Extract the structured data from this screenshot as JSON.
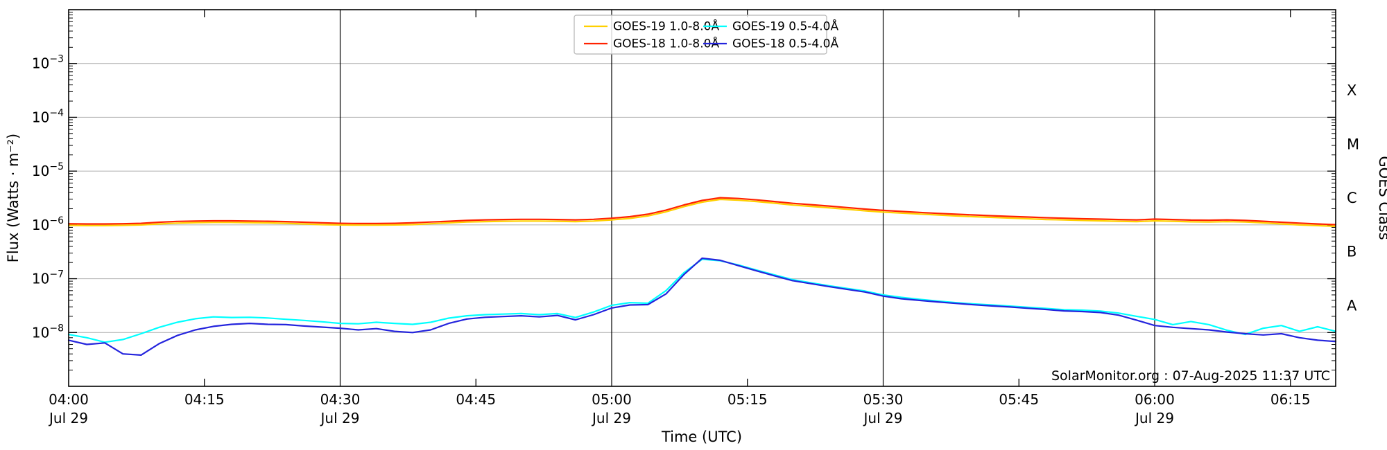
{
  "chart_data": {
    "type": "line",
    "title": "",
    "xlabel": "Time (UTC)",
    "ylabel": "Flux (Watts · m⁻²)",
    "y2label": "GOES Class",
    "annotation": "SolarMonitor.org : 07-Aug-2025 11:37 UTC",
    "yscale": "log",
    "ylim": [
      1e-09,
      0.01
    ],
    "grid": "horizontal-decades",
    "legend_position": "top-center",
    "x_range_minutes": [
      0,
      140
    ],
    "xticks": [
      {
        "m": 0,
        "label": "04:00",
        "date": "Jul 29"
      },
      {
        "m": 15,
        "label": "04:15"
      },
      {
        "m": 30,
        "label": "04:30",
        "date": "Jul 29"
      },
      {
        "m": 45,
        "label": "04:45"
      },
      {
        "m": 60,
        "label": "05:00",
        "date": "Jul 29"
      },
      {
        "m": 75,
        "label": "05:15"
      },
      {
        "m": 90,
        "label": "05:30",
        "date": "Jul 29"
      },
      {
        "m": 105,
        "label": "05:45"
      },
      {
        "m": 120,
        "label": "06:00",
        "date": "Jul 29"
      },
      {
        "m": 135,
        "label": "06:15"
      }
    ],
    "vlines_minutes": [
      30,
      60,
      90,
      120
    ],
    "ytick_exponents": [
      -3,
      -4,
      -5,
      -6,
      -7,
      -8
    ],
    "class_labels": [
      {
        "label": "X",
        "between": [
          -4,
          -3
        ]
      },
      {
        "label": "M",
        "between": [
          -5,
          -4
        ]
      },
      {
        "label": "C",
        "between": [
          -6,
          -5
        ]
      },
      {
        "label": "B",
        "between": [
          -7,
          -6
        ]
      },
      {
        "label": "A",
        "between": [
          -8,
          -7
        ]
      }
    ],
    "colors": {
      "grid": "#b8b8b8",
      "vline": "#000000",
      "border": "#000000",
      "legend_border": "#b5b5b5"
    },
    "time_minutes": [
      0,
      2,
      4,
      6,
      8,
      10,
      12,
      14,
      16,
      18,
      20,
      22,
      24,
      26,
      28,
      30,
      32,
      34,
      36,
      38,
      40,
      42,
      44,
      46,
      48,
      50,
      52,
      54,
      56,
      58,
      60,
      62,
      64,
      66,
      68,
      70,
      72,
      74,
      76,
      78,
      80,
      82,
      84,
      86,
      88,
      90,
      92,
      94,
      96,
      98,
      100,
      102,
      104,
      106,
      108,
      110,
      112,
      114,
      116,
      118,
      120,
      122,
      124,
      126,
      128,
      130,
      132,
      134,
      136,
      138,
      140
    ],
    "series": [
      {
        "name": "GOES-19 1.0-8.0Å",
        "color": "#ffd000",
        "scale": 1e-06,
        "values": [
          0.98,
          0.97,
          0.97,
          0.98,
          1.0,
          1.04,
          1.08,
          1.1,
          1.11,
          1.11,
          1.1,
          1.09,
          1.07,
          1.04,
          1.01,
          1.0,
          0.99,
          0.99,
          1.0,
          1.01,
          1.05,
          1.09,
          1.13,
          1.15,
          1.17,
          1.18,
          1.18,
          1.17,
          1.15,
          1.18,
          1.24,
          1.32,
          1.47,
          1.75,
          2.19,
          2.65,
          2.98,
          2.88,
          2.72,
          2.53,
          2.34,
          2.21,
          2.08,
          1.95,
          1.83,
          1.73,
          1.66,
          1.59,
          1.53,
          1.47,
          1.42,
          1.38,
          1.34,
          1.3,
          1.26,
          1.24,
          1.21,
          1.19,
          1.17,
          1.15,
          1.19,
          1.17,
          1.14,
          1.13,
          1.15,
          1.13,
          1.09,
          1.04,
          1.0,
          0.97,
          0.94
        ]
      },
      {
        "name": "GOES-18 1.0-8.0Å",
        "color": "#ff2200",
        "scale": 1e-06,
        "values": [
          1.05,
          1.04,
          1.04,
          1.05,
          1.07,
          1.12,
          1.16,
          1.18,
          1.19,
          1.19,
          1.18,
          1.17,
          1.15,
          1.12,
          1.09,
          1.07,
          1.06,
          1.06,
          1.07,
          1.09,
          1.13,
          1.17,
          1.21,
          1.24,
          1.26,
          1.27,
          1.27,
          1.26,
          1.24,
          1.27,
          1.33,
          1.42,
          1.58,
          1.88,
          2.35,
          2.85,
          3.2,
          3.1,
          2.92,
          2.72,
          2.52,
          2.38,
          2.24,
          2.1,
          1.97,
          1.86,
          1.78,
          1.71,
          1.64,
          1.58,
          1.53,
          1.48,
          1.44,
          1.4,
          1.36,
          1.33,
          1.3,
          1.28,
          1.26,
          1.24,
          1.28,
          1.26,
          1.23,
          1.22,
          1.24,
          1.21,
          1.17,
          1.12,
          1.08,
          1.04,
          1.01
        ]
      },
      {
        "name": "GOES-19 0.5-4.0Å",
        "color": "#00ffff",
        "scale": 1e-08,
        "values": [
          0.92,
          0.8,
          0.66,
          0.74,
          0.95,
          1.25,
          1.55,
          1.8,
          1.95,
          1.9,
          1.92,
          1.86,
          1.76,
          1.68,
          1.58,
          1.48,
          1.45,
          1.55,
          1.48,
          1.42,
          1.55,
          1.85,
          2.05,
          2.15,
          2.2,
          2.25,
          2.15,
          2.25,
          1.9,
          2.4,
          3.2,
          3.6,
          3.5,
          6.0,
          13.0,
          23.0,
          21.5,
          18.0,
          14.5,
          11.8,
          9.6,
          8.4,
          7.4,
          6.6,
          5.9,
          5.0,
          4.5,
          4.15,
          3.85,
          3.6,
          3.4,
          3.25,
          3.1,
          2.95,
          2.8,
          2.65,
          2.6,
          2.5,
          2.3,
          2.0,
          1.75,
          1.4,
          1.6,
          1.4,
          1.1,
          0.92,
          1.2,
          1.35,
          1.05,
          1.28,
          1.05
        ]
      },
      {
        "name": "GOES-18 0.5-4.0Å",
        "color": "#2424dd",
        "scale": 1e-08,
        "values": [
          0.72,
          0.6,
          0.64,
          0.4,
          0.38,
          0.62,
          0.88,
          1.12,
          1.3,
          1.42,
          1.48,
          1.42,
          1.4,
          1.32,
          1.26,
          1.2,
          1.12,
          1.18,
          1.05,
          1.0,
          1.12,
          1.48,
          1.78,
          1.92,
          1.98,
          2.05,
          1.95,
          2.08,
          1.72,
          2.15,
          2.85,
          3.25,
          3.3,
          5.2,
          12.0,
          24.0,
          22.0,
          17.5,
          14.0,
          11.3,
          9.2,
          8.1,
          7.15,
          6.35,
          5.65,
          4.75,
          4.25,
          3.95,
          3.7,
          3.48,
          3.28,
          3.12,
          2.98,
          2.82,
          2.68,
          2.52,
          2.45,
          2.35,
          2.1,
          1.7,
          1.35,
          1.25,
          1.18,
          1.12,
          1.02,
          0.95,
          0.9,
          0.95,
          0.8,
          0.72,
          0.68
        ]
      }
    ]
  }
}
